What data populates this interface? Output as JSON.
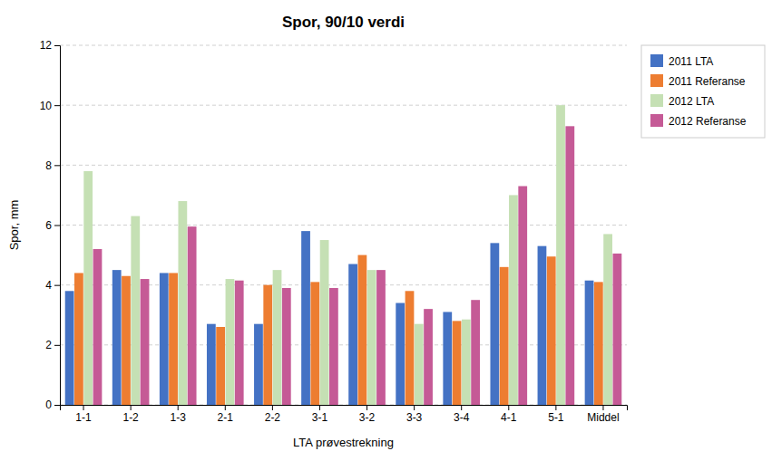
{
  "chart_data": {
    "type": "bar",
    "title": "Spor, 90/10 verdi",
    "xlabel": "LTA prøvestrekning",
    "ylabel": "Spor, mm",
    "categories": [
      "1-1",
      "1-2",
      "1-3",
      "2-1",
      "2-2",
      "3-1",
      "3-2",
      "3-3",
      "3-4",
      "4-1",
      "5-1",
      "Middel"
    ],
    "series": [
      {
        "name": "2011 LTA",
        "color": "#4472C4",
        "values": [
          3.8,
          4.5,
          4.4,
          2.7,
          2.7,
          5.8,
          4.7,
          3.4,
          3.1,
          5.4,
          5.3,
          4.15
        ]
      },
      {
        "name": "2011 Referanse",
        "color": "#ED7D31",
        "values": [
          4.4,
          4.3,
          4.4,
          2.6,
          4.0,
          4.1,
          5.0,
          3.8,
          2.8,
          4.6,
          4.95,
          4.1
        ]
      },
      {
        "name": "2012 LTA",
        "color": "#C5E0B4",
        "values": [
          7.8,
          6.3,
          6.8,
          4.2,
          4.5,
          5.5,
          4.5,
          2.7,
          2.85,
          7.0,
          10.0,
          5.7
        ]
      },
      {
        "name": "2012 Referanse",
        "color": "#C55A96",
        "values": [
          5.2,
          4.2,
          5.95,
          4.15,
          3.9,
          3.9,
          4.5,
          3.2,
          3.5,
          7.3,
          9.3,
          5.05
        ]
      }
    ],
    "ylim": [
      0,
      12
    ],
    "yticks": [
      0,
      2,
      4,
      6,
      8,
      10,
      12
    ],
    "grid": true,
    "legend": "upper right"
  }
}
